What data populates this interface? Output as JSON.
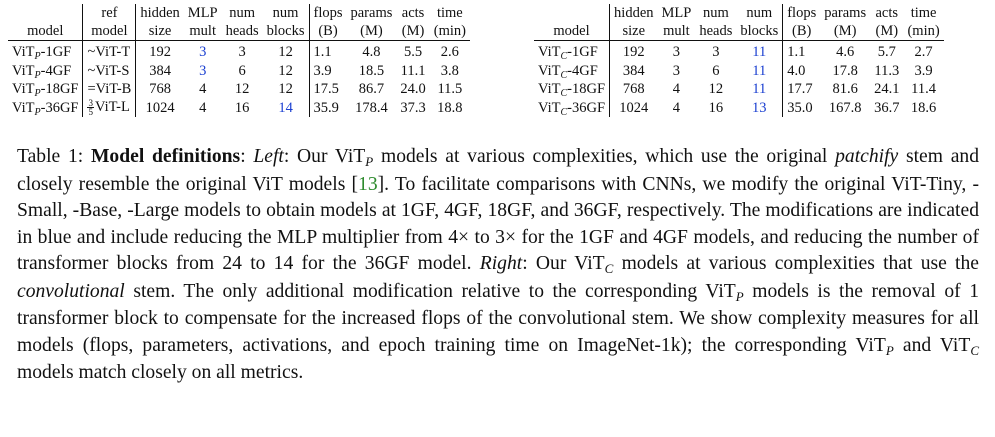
{
  "left_table": {
    "headers_top": [
      "",
      "ref",
      "hidden",
      "MLP",
      "num",
      "num",
      "flops",
      "params",
      "acts",
      "time"
    ],
    "headers_bottom": [
      "model",
      "model",
      "size",
      "mult",
      "heads",
      "blocks",
      "(B)",
      "(M)",
      "(M)",
      "(min)"
    ],
    "rows": [
      {
        "model_base": "ViT",
        "model_sub": "P",
        "model_suffix": "-1GF",
        "ref_prefix": "~",
        "ref_frac_num": "",
        "ref_frac_den": "",
        "ref": "ViT-T",
        "hidden": "192",
        "mlp": "3",
        "mlp_blue": true,
        "heads": "3",
        "blocks": "12",
        "blocks_blue": false,
        "flops": "1.1",
        "params": "4.8",
        "acts": "5.5",
        "time": "2.6"
      },
      {
        "model_base": "ViT",
        "model_sub": "P",
        "model_suffix": "-4GF",
        "ref_prefix": "~",
        "ref_frac_num": "",
        "ref_frac_den": "",
        "ref": "ViT-S",
        "hidden": "384",
        "mlp": "3",
        "mlp_blue": true,
        "heads": "6",
        "blocks": "12",
        "blocks_blue": false,
        "flops": "3.9",
        "params": "18.5",
        "acts": "11.1",
        "time": "3.8"
      },
      {
        "model_base": "ViT",
        "model_sub": "P",
        "model_suffix": "-18GF",
        "ref_prefix": "=",
        "ref_frac_num": "",
        "ref_frac_den": "",
        "ref": "ViT-B",
        "hidden": "768",
        "mlp": "4",
        "mlp_blue": false,
        "heads": "12",
        "blocks": "12",
        "blocks_blue": false,
        "flops": "17.5",
        "params": "86.7",
        "acts": "24.0",
        "time": "11.5"
      },
      {
        "model_base": "ViT",
        "model_sub": "P",
        "model_suffix": "-36GF",
        "ref_prefix": "",
        "ref_frac_num": "3",
        "ref_frac_den": "5",
        "ref": "ViT-L",
        "hidden": "1024",
        "mlp": "4",
        "mlp_blue": false,
        "heads": "16",
        "blocks": "14",
        "blocks_blue": true,
        "flops": "35.9",
        "params": "178.4",
        "acts": "37.3",
        "time": "18.8"
      }
    ]
  },
  "right_table": {
    "headers_top": [
      "",
      "hidden",
      "MLP",
      "num",
      "num",
      "flops",
      "params",
      "acts",
      "time"
    ],
    "headers_bottom": [
      "model",
      "size",
      "mult",
      "heads",
      "blocks",
      "(B)",
      "(M)",
      "(M)",
      "(min)"
    ],
    "rows": [
      {
        "model_base": "ViT",
        "model_sub": "C",
        "model_suffix": "-1GF",
        "hidden": "192",
        "mlp": "3",
        "heads": "3",
        "blocks": "11",
        "flops": "1.1",
        "params": "4.6",
        "acts": "5.7",
        "time": "2.7"
      },
      {
        "model_base": "ViT",
        "model_sub": "C",
        "model_suffix": "-4GF",
        "hidden": "384",
        "mlp": "3",
        "heads": "6",
        "blocks": "11",
        "flops": "4.0",
        "params": "17.8",
        "acts": "11.3",
        "time": "3.9"
      },
      {
        "model_base": "ViT",
        "model_sub": "C",
        "model_suffix": "-18GF",
        "hidden": "768",
        "mlp": "4",
        "heads": "12",
        "blocks": "11",
        "flops": "17.7",
        "params": "81.6",
        "acts": "24.1",
        "time": "11.4"
      },
      {
        "model_base": "ViT",
        "model_sub": "C",
        "model_suffix": "-36GF",
        "hidden": "1024",
        "mlp": "4",
        "heads": "16",
        "blocks": "13",
        "flops": "35.0",
        "params": "167.8",
        "acts": "36.7",
        "time": "18.6"
      }
    ]
  },
  "caption": {
    "label": "Table 1: ",
    "bold_title": "Model definitions",
    "p1": ": ",
    "left_word": "Left",
    "p2": ": Our ViT",
    "sub_p": "P",
    "p3": " models at various complexities, which use the original ",
    "patchify": "patchify",
    "p4": " stem and closely resemble the original ViT models [",
    "cite": "13",
    "p5": "]. To facilitate comparisons with CNNs, we modify the original ViT-Tiny, -Small, -Base, -Large models to obtain models at 1GF, 4GF, 18GF, and 36GF, respectively. The modifications are indicated in blue and include reducing the MLP multiplier from 4× to 3× for the 1GF and 4GF models, and reducing the number of transformer blocks from 24 to 14 for the 36GF model. ",
    "right_word": "Right",
    "p6": ": Our ViT",
    "sub_c": "C",
    "p7": " models at various complexities that use the ",
    "convolutional": "convolutional",
    "p8": " stem. The only additional modification relative to the corresponding ViT",
    "sub_p2": "P",
    "p9": " models is the removal of 1 transformer block to compensate for the increased flops of the convolutional stem. We show complexity measures for all models (flops, parameters, activations, and epoch training time on ImageNet-1k); the corresponding ViT",
    "sub_p3": "P",
    "p10": " and ViT",
    "sub_c2": "C",
    "p11": " models match closely on all metrics."
  },
  "colors": {
    "highlight_blue": "#1a3fd1",
    "citation_green": "#2e8b2e"
  }
}
